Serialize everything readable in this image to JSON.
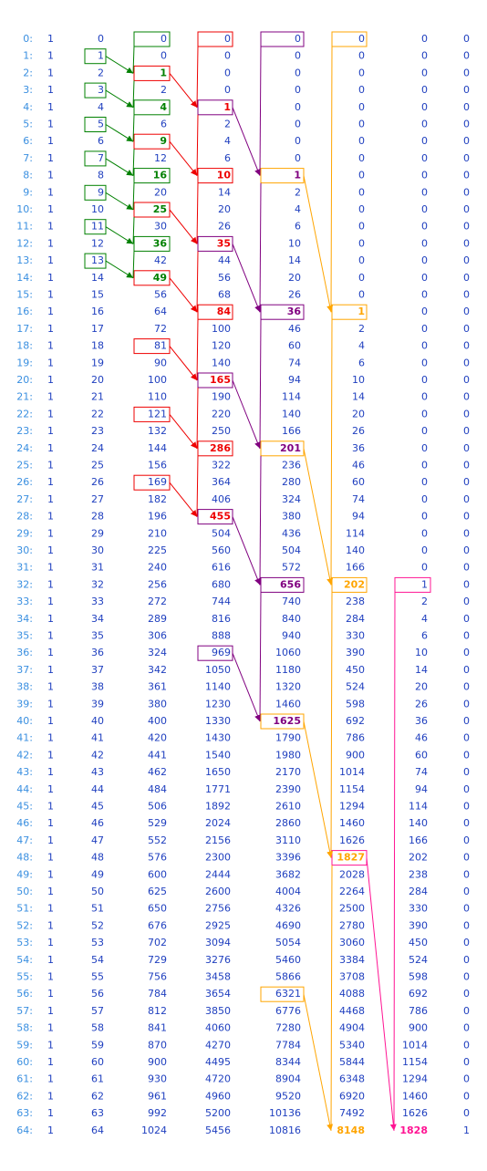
{
  "table": {
    "rows": [
      [
        "0:",
        1,
        0,
        0,
        0,
        0,
        0,
        0,
        0
      ],
      [
        "1:",
        1,
        1,
        0,
        0,
        0,
        0,
        0,
        0
      ],
      [
        "2:",
        1,
        2,
        1,
        0,
        0,
        0,
        0,
        0
      ],
      [
        "3:",
        1,
        3,
        2,
        0,
        0,
        0,
        0,
        0
      ],
      [
        "4:",
        1,
        4,
        4,
        1,
        0,
        0,
        0,
        0
      ],
      [
        "5:",
        1,
        5,
        6,
        2,
        0,
        0,
        0,
        0
      ],
      [
        "6:",
        1,
        6,
        9,
        4,
        0,
        0,
        0,
        0
      ],
      [
        "7:",
        1,
        7,
        12,
        6,
        0,
        0,
        0,
        0
      ],
      [
        "8:",
        1,
        8,
        16,
        10,
        1,
        0,
        0,
        0
      ],
      [
        "9:",
        1,
        9,
        20,
        14,
        2,
        0,
        0,
        0
      ],
      [
        "10:",
        1,
        10,
        25,
        20,
        4,
        0,
        0,
        0
      ],
      [
        "11:",
        1,
        11,
        30,
        26,
        6,
        0,
        0,
        0
      ],
      [
        "12:",
        1,
        12,
        36,
        35,
        10,
        0,
        0,
        0
      ],
      [
        "13:",
        1,
        13,
        42,
        44,
        14,
        0,
        0,
        0
      ],
      [
        "14:",
        1,
        14,
        49,
        56,
        20,
        0,
        0,
        0
      ],
      [
        "15:",
        1,
        15,
        56,
        68,
        26,
        0,
        0,
        0
      ],
      [
        "16:",
        1,
        16,
        64,
        84,
        36,
        1,
        0,
        0
      ],
      [
        "17:",
        1,
        17,
        72,
        100,
        46,
        2,
        0,
        0
      ],
      [
        "18:",
        1,
        18,
        81,
        120,
        60,
        4,
        0,
        0
      ],
      [
        "19:",
        1,
        19,
        90,
        140,
        74,
        6,
        0,
        0
      ],
      [
        "20:",
        1,
        20,
        100,
        165,
        94,
        10,
        0,
        0
      ],
      [
        "21:",
        1,
        21,
        110,
        190,
        114,
        14,
        0,
        0
      ],
      [
        "22:",
        1,
        22,
        121,
        220,
        140,
        20,
        0,
        0
      ],
      [
        "23:",
        1,
        23,
        132,
        250,
        166,
        26,
        0,
        0
      ],
      [
        "24:",
        1,
        24,
        144,
        286,
        201,
        36,
        0,
        0
      ],
      [
        "25:",
        1,
        25,
        156,
        322,
        236,
        46,
        0,
        0
      ],
      [
        "26:",
        1,
        26,
        169,
        364,
        280,
        60,
        0,
        0
      ],
      [
        "27:",
        1,
        27,
        182,
        406,
        324,
        74,
        0,
        0
      ],
      [
        "28:",
        1,
        28,
        196,
        455,
        380,
        94,
        0,
        0
      ],
      [
        "29:",
        1,
        29,
        210,
        504,
        436,
        114,
        0,
        0
      ],
      [
        "30:",
        1,
        30,
        225,
        560,
        504,
        140,
        0,
        0
      ],
      [
        "31:",
        1,
        31,
        240,
        616,
        572,
        166,
        0,
        0
      ],
      [
        "32:",
        1,
        32,
        256,
        680,
        656,
        202,
        1,
        0
      ],
      [
        "33:",
        1,
        33,
        272,
        744,
        740,
        238,
        2,
        0
      ],
      [
        "34:",
        1,
        34,
        289,
        816,
        840,
        284,
        4,
        0
      ],
      [
        "35:",
        1,
        35,
        306,
        888,
        940,
        330,
        6,
        0
      ],
      [
        "36:",
        1,
        36,
        324,
        969,
        1060,
        390,
        10,
        0
      ],
      [
        "37:",
        1,
        37,
        342,
        1050,
        1180,
        450,
        14,
        0
      ],
      [
        "38:",
        1,
        38,
        361,
        1140,
        1320,
        524,
        20,
        0
      ],
      [
        "39:",
        1,
        39,
        380,
        1230,
        1460,
        598,
        26,
        0
      ],
      [
        "40:",
        1,
        40,
        400,
        1330,
        1625,
        692,
        36,
        0
      ],
      [
        "41:",
        1,
        41,
        420,
        1430,
        1790,
        786,
        46,
        0
      ],
      [
        "42:",
        1,
        42,
        441,
        1540,
        1980,
        900,
        60,
        0
      ],
      [
        "43:",
        1,
        43,
        462,
        1650,
        2170,
        1014,
        74,
        0
      ],
      [
        "44:",
        1,
        44,
        484,
        1771,
        2390,
        1154,
        94,
        0
      ],
      [
        "45:",
        1,
        45,
        506,
        1892,
        2610,
        1294,
        114,
        0
      ],
      [
        "46:",
        1,
        46,
        529,
        2024,
        2860,
        1460,
        140,
        0
      ],
      [
        "47:",
        1,
        47,
        552,
        2156,
        3110,
        1626,
        166,
        0
      ],
      [
        "48:",
        1,
        48,
        576,
        2300,
        3396,
        1827,
        202,
        0
      ],
      [
        "49:",
        1,
        49,
        600,
        2444,
        3682,
        2028,
        238,
        0
      ],
      [
        "50:",
        1,
        50,
        625,
        2600,
        4004,
        2264,
        284,
        0
      ],
      [
        "51:",
        1,
        51,
        650,
        2756,
        4326,
        2500,
        330,
        0
      ],
      [
        "52:",
        1,
        52,
        676,
        2925,
        4690,
        2780,
        390,
        0
      ],
      [
        "53:",
        1,
        53,
        702,
        3094,
        5054,
        3060,
        450,
        0
      ],
      [
        "54:",
        1,
        54,
        729,
        3276,
        5460,
        3384,
        524,
        0
      ],
      [
        "55:",
        1,
        55,
        756,
        3458,
        5866,
        3708,
        598,
        0
      ],
      [
        "56:",
        1,
        56,
        784,
        3654,
        6321,
        4088,
        692,
        0
      ],
      [
        "57:",
        1,
        57,
        812,
        3850,
        6776,
        4468,
        786,
        0
      ],
      [
        "58:",
        1,
        58,
        841,
        4060,
        7280,
        4904,
        900,
        0
      ],
      [
        "59:",
        1,
        59,
        870,
        4270,
        7784,
        5340,
        1014,
        0
      ],
      [
        "60:",
        1,
        60,
        900,
        4495,
        8344,
        5844,
        1154,
        0
      ],
      [
        "61:",
        1,
        61,
        930,
        4720,
        8904,
        6348,
        1294,
        0
      ],
      [
        "62:",
        1,
        62,
        961,
        4960,
        9520,
        6920,
        1460,
        0
      ],
      [
        "63:",
        1,
        63,
        992,
        5200,
        10136,
        7492,
        1626,
        0
      ],
      [
        "64:",
        1,
        64,
        1024,
        5456,
        10816,
        8148,
        1828,
        1
      ]
    ]
  }
}
